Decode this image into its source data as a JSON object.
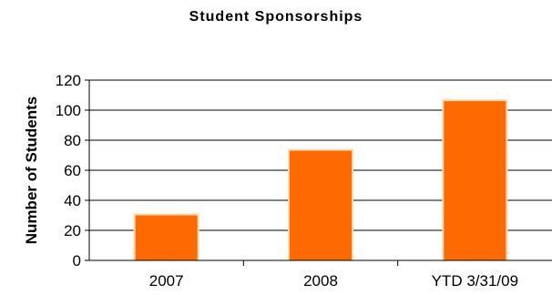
{
  "chart_data": {
    "type": "bar",
    "title": "Student Sponsorships",
    "xlabel": "",
    "ylabel": "Number of Students",
    "categories": [
      "2007",
      "2008",
      "YTD 3/31/09"
    ],
    "values": [
      30,
      73,
      106
    ],
    "ylim": [
      0,
      120
    ],
    "yticks": [
      0,
      20,
      40,
      60,
      80,
      100,
      120
    ],
    "grid": true,
    "bar_color": "#ff6a00",
    "legend": "none"
  }
}
